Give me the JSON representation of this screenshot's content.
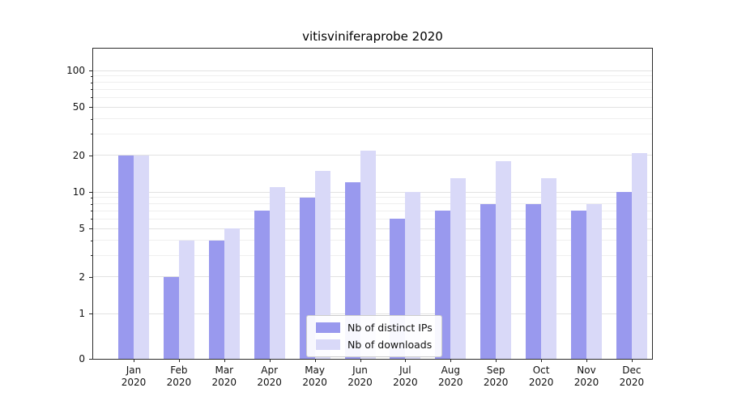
{
  "chart_data": {
    "type": "bar",
    "title": "vitisviniferaprobe 2020",
    "categories": [
      "Jan",
      "Feb",
      "Mar",
      "Apr",
      "May",
      "Jun",
      "Jul",
      "Aug",
      "Sep",
      "Oct",
      "Nov",
      "Dec"
    ],
    "x_year_label": "2020",
    "series": [
      {
        "name": "Nb of distinct IPs",
        "key": "distinct-ips",
        "color": "#9999ee",
        "values": [
          20,
          2,
          4,
          7,
          9,
          12,
          6,
          7,
          8,
          8,
          7,
          10
        ]
      },
      {
        "name": "Nb of downloads",
        "key": "downloads",
        "color": "#d9d9f8",
        "values": [
          20,
          4,
          5,
          11,
          15,
          22,
          10,
          13,
          18,
          13,
          8,
          21
        ]
      }
    ],
    "yscale": "symlog",
    "ylim": [
      0,
      130
    ],
    "y_major_ticks": [
      0,
      1,
      2,
      5,
      10,
      20,
      50,
      100
    ],
    "y_minor_ticks": [
      3,
      4,
      6,
      7,
      8,
      9,
      30,
      40,
      60,
      70,
      80,
      90
    ],
    "grid": true,
    "legend": {
      "position": "lower-center-inside",
      "labels": [
        "Nb of distinct IPs",
        "Nb of downloads"
      ]
    }
  }
}
